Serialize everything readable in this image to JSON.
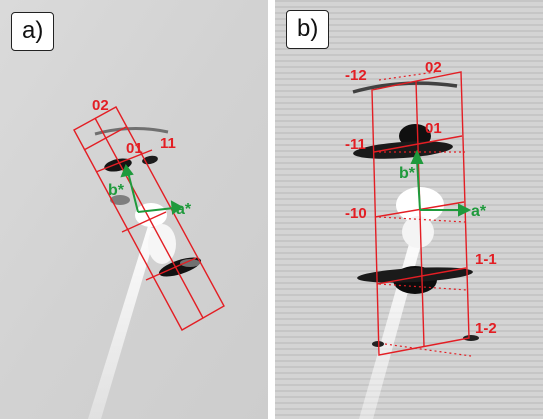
{
  "colors": {
    "lattice": "#e31e24",
    "vector": "#1f9a3c",
    "background": "#d8d8d8",
    "spot": "#1a1a1a"
  },
  "panel_a": {
    "label": "a)",
    "miller_labels": {
      "m02": "02",
      "m01": "01",
      "m11": "11"
    },
    "vector_labels": {
      "a_star": "a*",
      "b_star": "b*"
    }
  },
  "panel_b": {
    "label": "b)",
    "miller_labels": {
      "m_12": "-12",
      "m02": "02",
      "m_11": "-11",
      "m01": "01",
      "m_10": "-10",
      "m1_1": "1-1",
      "m1_2": "1-2"
    },
    "vector_labels": {
      "a_star": "a*",
      "b_star": "b*"
    }
  }
}
